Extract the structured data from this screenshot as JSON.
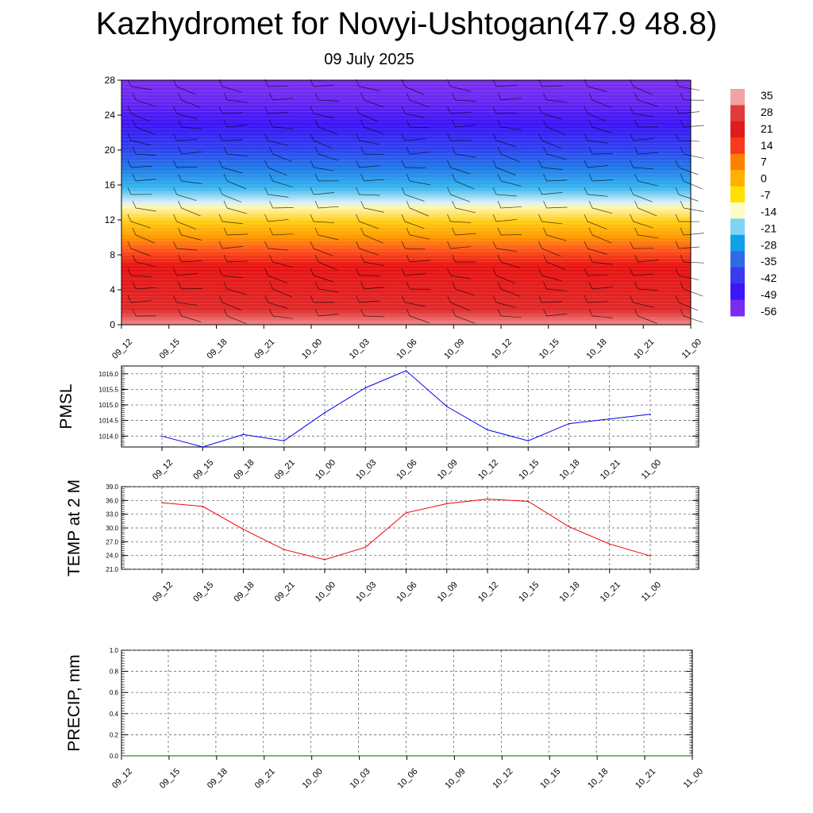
{
  "header": {
    "title": "Kazhydromet for Novyi-Ushtogan(47.9 48.8)",
    "subtitle": "09 July 2025"
  },
  "chart_data": [
    {
      "type": "heatmap",
      "name": "temperature-wind-cross-section",
      "x_ticks": [
        "09_12",
        "09_15",
        "09_18",
        "09_21",
        "10_00",
        "10_03",
        "10_06",
        "10_09",
        "10_12",
        "10_15",
        "10_18",
        "10_21",
        "11_00"
      ],
      "y_ticks": [
        0,
        4,
        8,
        12,
        16,
        20,
        24,
        28
      ],
      "ylim": [
        0,
        28
      ],
      "colorbar": {
        "labels": [
          "35",
          "28",
          "21",
          "14",
          "7",
          "0",
          "-7",
          "-14",
          "-21",
          "-28",
          "-35",
          "-42",
          "-49",
          "-56"
        ],
        "colors": [
          "#f2a3a3",
          "#e03a3a",
          "#e11b1b",
          "#f53a1e",
          "#ff7f00",
          "#ffb000",
          "#ffe000",
          "#fffbc8",
          "#7fd3f5",
          "#10a0e8",
          "#2e6ae6",
          "#3a3af0",
          "#3d16f5",
          "#7a2cf0"
        ]
      },
      "wind_barbs": true
    },
    {
      "type": "line",
      "name": "pmsl",
      "ylabel": "PMSL",
      "categories": [
        "09_12",
        "09_15",
        "09_18",
        "09_21",
        "10_00",
        "10_03",
        "10_06",
        "10_09",
        "10_12",
        "10_15",
        "10_18",
        "10_21",
        "11_00"
      ],
      "series": [
        {
          "values": [
            1014.0,
            1013.65,
            1014.05,
            1013.85,
            1014.75,
            1015.55,
            1016.1,
            1014.95,
            1014.2,
            1013.85,
            1014.4,
            1014.55,
            1014.7
          ],
          "color": "#0000ee"
        }
      ],
      "ylim": [
        1013.65,
        1016.25
      ],
      "y_ticks": [
        "1014.0",
        "1014.5",
        "1015.0",
        "1015.5",
        "1016.0"
      ],
      "grid": true
    },
    {
      "type": "line",
      "name": "temp-2m",
      "ylabel": "TEMP at 2 M",
      "categories": [
        "09_12",
        "09_15",
        "09_18",
        "09_21",
        "10_00",
        "10_03",
        "10_06",
        "10_09",
        "10_12",
        "10_15",
        "10_18",
        "10_21",
        "11_00"
      ],
      "series": [
        {
          "values": [
            35.5,
            34.7,
            29.7,
            25.3,
            23.1,
            25.8,
            33.3,
            35.3,
            36.3,
            35.8,
            30.3,
            26.5,
            23.9
          ],
          "color": "#ee0000"
        }
      ],
      "ylim": [
        21.0,
        39.0
      ],
      "y_ticks": [
        "21.0",
        "24.0",
        "27.0",
        "30.0",
        "33.0",
        "36.0",
        "39.0"
      ],
      "grid": true
    },
    {
      "type": "line",
      "name": "precip",
      "ylabel": "PRECIP, mm",
      "categories": [
        "09_12",
        "09_15",
        "09_18",
        "09_21",
        "10_00",
        "10_03",
        "10_06",
        "10_09",
        "10_12",
        "10_15",
        "10_18",
        "10_21",
        "11_00"
      ],
      "series": [
        {
          "values": [
            0,
            0,
            0,
            0,
            0,
            0,
            0,
            0,
            0,
            0,
            0,
            0,
            0
          ],
          "color": "#006600"
        }
      ],
      "ylim": [
        0.0,
        1.0
      ],
      "y_ticks": [
        "0.0",
        "0.2",
        "0.4",
        "0.6",
        "0.8",
        "1.0"
      ],
      "grid": true
    }
  ]
}
